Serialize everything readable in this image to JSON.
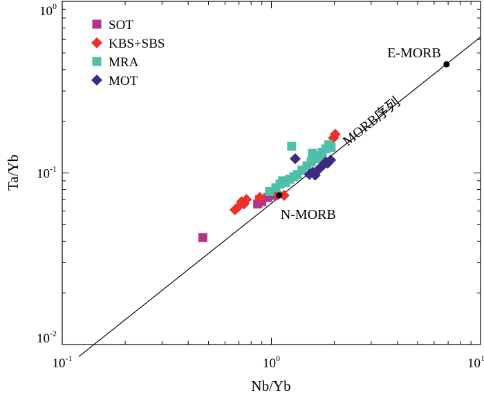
{
  "chart_data": {
    "type": "scatter",
    "title": "",
    "xlabel": "Nb/Yb",
    "ylabel": "Ta/Yb",
    "xscale": "log",
    "yscale": "log",
    "xlim": [
      0.1,
      10
    ],
    "ylim": [
      0.01,
      1
    ],
    "grid": false,
    "legend_position": "top-left",
    "x_ticks": [
      {
        "value": 0.1,
        "base": "10",
        "exp": "-1"
      },
      {
        "value": 1,
        "base": "10",
        "exp": "0"
      },
      {
        "value": 10,
        "base": "10",
        "exp": "1"
      }
    ],
    "y_ticks": [
      {
        "value": 0.01,
        "base": "10",
        "exp": "-2"
      },
      {
        "value": 0.1,
        "base": "10",
        "exp": "-1"
      },
      {
        "value": 1,
        "base": "10",
        "exp": "0"
      }
    ],
    "series": [
      {
        "name": "SOT",
        "marker": "square",
        "color": "#B5338A",
        "points": [
          [
            0.47,
            0.042
          ],
          [
            0.86,
            0.066
          ],
          [
            0.88,
            0.07
          ],
          [
            0.9,
            0.068
          ],
          [
            0.96,
            0.072
          ],
          [
            1.03,
            0.074
          ]
        ]
      },
      {
        "name": "KBS+SBS",
        "marker": "diamond",
        "color": "#E8322A",
        "points": [
          [
            0.67,
            0.061
          ],
          [
            0.7,
            0.064
          ],
          [
            0.72,
            0.068
          ],
          [
            0.74,
            0.066
          ],
          [
            0.76,
            0.07
          ],
          [
            0.88,
            0.072
          ],
          [
            1.08,
            0.075
          ],
          [
            1.15,
            0.074
          ],
          [
            1.98,
            0.16
          ],
          [
            2.02,
            0.168
          ]
        ]
      },
      {
        "name": "MRA",
        "marker": "square",
        "color": "#4FBFA9",
        "points": [
          [
            0.98,
            0.078
          ],
          [
            1.05,
            0.082
          ],
          [
            1.1,
            0.086
          ],
          [
            1.13,
            0.09
          ],
          [
            1.17,
            0.088
          ],
          [
            1.22,
            0.092
          ],
          [
            1.28,
            0.095
          ],
          [
            1.33,
            0.098
          ],
          [
            1.4,
            0.104
          ],
          [
            1.48,
            0.11
          ],
          [
            1.55,
            0.116
          ],
          [
            1.62,
            0.121
          ],
          [
            1.68,
            0.126
          ],
          [
            1.75,
            0.132
          ],
          [
            1.82,
            0.138
          ],
          [
            1.88,
            0.146
          ],
          [
            1.93,
            0.141
          ],
          [
            1.25,
            0.143
          ],
          [
            1.57,
            0.13
          ],
          [
            1.72,
            0.122
          ]
        ]
      },
      {
        "name": "MOT",
        "marker": "diamond",
        "color": "#3D2A82",
        "points": [
          [
            1.3,
            0.121
          ],
          [
            1.52,
            0.098
          ],
          [
            1.58,
            0.101
          ],
          [
            1.62,
            0.097
          ],
          [
            1.67,
            0.104
          ],
          [
            1.72,
            0.108
          ],
          [
            1.78,
            0.112
          ],
          [
            1.82,
            0.116
          ],
          [
            1.86,
            0.114
          ],
          [
            1.92,
            0.119
          ]
        ]
      }
    ],
    "reference_line": {
      "label": "MORB序列",
      "points": [
        [
          0.12,
          0.0085
        ],
        [
          10,
          0.62
        ]
      ]
    },
    "reference_points": [
      {
        "label": "N-MORB",
        "x": 1.09,
        "y": 0.074
      },
      {
        "label": "E-MORB",
        "x": 6.88,
        "y": 0.43
      }
    ]
  }
}
